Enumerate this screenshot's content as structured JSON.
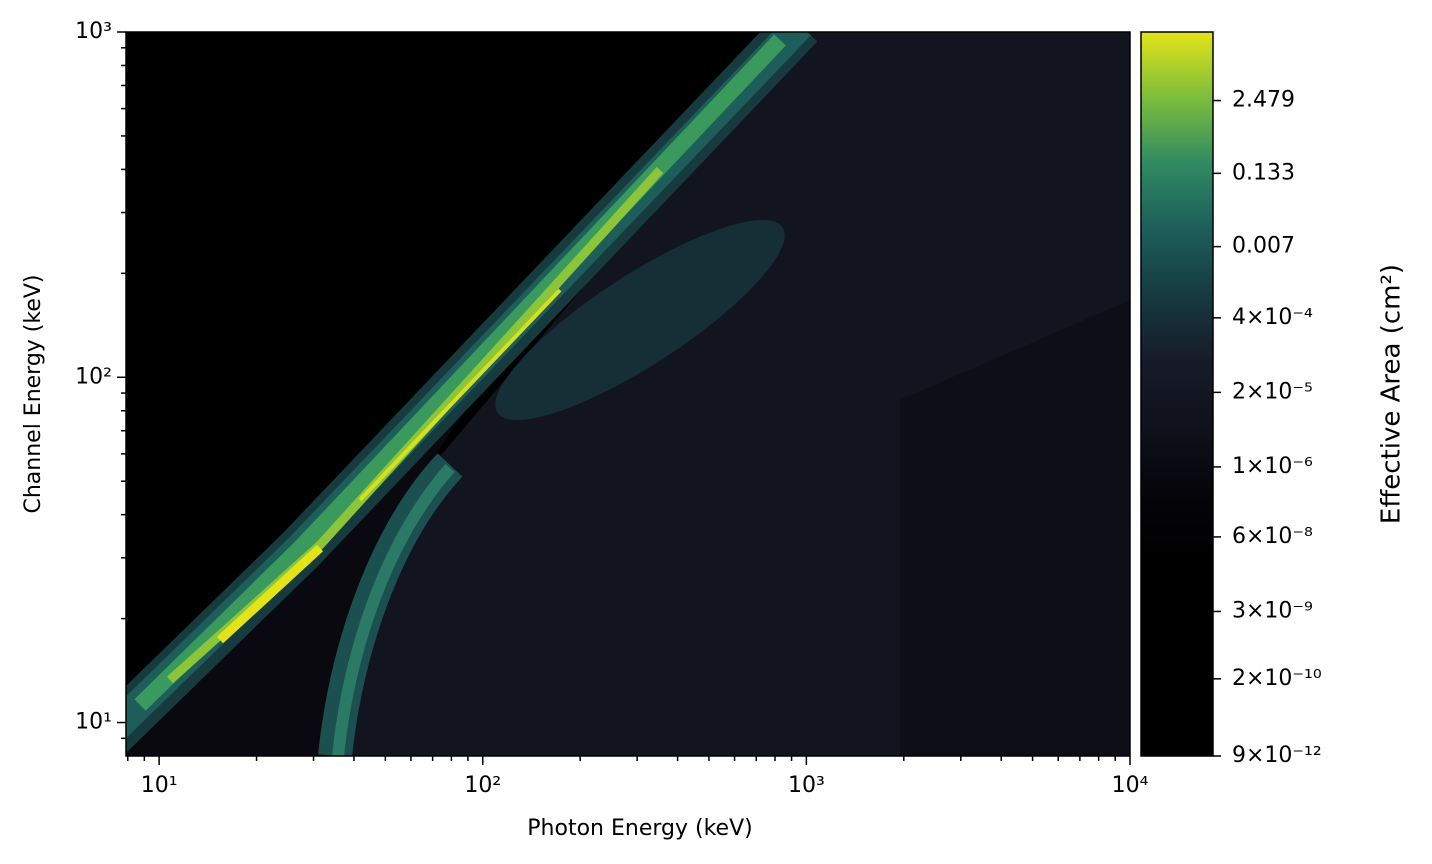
{
  "chart_data": {
    "type": "contour",
    "x_label": "Photon Energy (keV)",
    "y_label": "Channel Energy (keV)",
    "xscale": "log",
    "yscale": "log",
    "xlim": [
      7.9,
      10000
    ],
    "ylim": [
      8,
      1000
    ],
    "xticks": [
      {
        "value": 10,
        "label": "10¹"
      },
      {
        "value": 100,
        "label": "10²"
      },
      {
        "value": 1000,
        "label": "10³"
      },
      {
        "value": 10000,
        "label": "10⁴"
      }
    ],
    "yticks": [
      {
        "value": 10,
        "label": "10¹"
      },
      {
        "value": 100,
        "label": "10²"
      },
      {
        "value": 1000,
        "label": "10³"
      }
    ],
    "colorbar": {
      "label": "Effective Area (cm²)",
      "scale": "log",
      "clim": [
        9e-12,
        39
      ],
      "colors": [
        "#000000",
        "#000000",
        "#000000",
        "#000000",
        "#05050a",
        "#0f111c",
        "#171b29",
        "#163a40",
        "#1d5e5a",
        "#2f8a63",
        "#7cbd3c",
        "#e3e418"
      ],
      "ticks": [
        2.479,
        0.133,
        0.007,
        {
          "value": 0.0004,
          "label": "4×10⁻⁴"
        },
        {
          "value": 2e-05,
          "label": "2×10⁻⁵"
        },
        {
          "value": 1e-06,
          "label": "1×10⁻⁶"
        },
        {
          "value": 6e-08,
          "label": "6×10⁻⁸"
        },
        {
          "value": 3e-09,
          "label": "3×10⁻⁹"
        },
        {
          "value": 2e-10,
          "label": "2×10⁻¹⁰"
        },
        {
          "value": 9e-12,
          "label": "9×10⁻¹²"
        }
      ]
    }
  }
}
